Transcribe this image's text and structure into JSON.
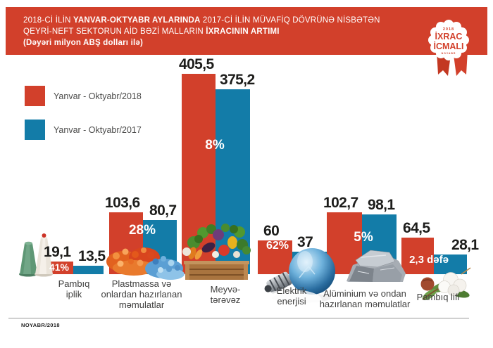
{
  "header": {
    "line1_regular": "2018-Cİ İLİN ",
    "line1_bold": "YANVAR-OKTYABR AYLARINDA",
    "line1_rest": " 2017-Cİ İLİN MÜVAFİQ DÖVRÜNƏ NİSBƏTƏN",
    "line2_regular": "QEYRİ-NEFT SEKTORUN AİD BƏZİ MALLARIN ",
    "line2_bold": "İXRACININ ARTIMI",
    "line3": "(Dəyəri milyon ABŞ dolları ilə)"
  },
  "badge": {
    "year": "2018",
    "line1": "İXRAC",
    "line2": "İCMALI",
    "sub": "NOYABR"
  },
  "footer": {
    "date": "NOYABR/2018"
  },
  "colors": {
    "red": "#d2402b",
    "blue": "#137ca8",
    "text_dark": "#1d1d1b"
  },
  "chart_data": {
    "type": "bar",
    "title": "2018-Cİ İLİN YANVAR-OKTYABR AYLARINDA 2017-Cİ İLİN MÜVAFİQ DÖVRÜNƏ NİSBƏTƏN QEYRİ-NEFT SEKTORUN AİD BƏZİ MALLARIN İXRACININ ARTIMI",
    "subtitle": "(Dəyəri milyon ABŞ dolları ilə)",
    "unit": "milyon ABŞ dolları",
    "legend_position": "top-left",
    "grid": false,
    "categories": [
      "Pambıq iplik",
      "Plastmassa və onlardan hazırlanan məmulatlar",
      "Meyvə-tərəvəz",
      "Elektrik enerjisi",
      "Alüminium və ondan hazırlanan məmulatlar",
      "Pambıq lifi"
    ],
    "category_lines": [
      [
        "Pambıq",
        "iplik"
      ],
      [
        "Plastmassa və",
        "onlardan hazırlanan",
        "məmulatlar"
      ],
      [
        "Meyvə-",
        "tərəvəz"
      ],
      [
        "Elektrik",
        "enerjisi"
      ],
      [
        "Alüminium və ondan",
        "hazırlanan məmulatlar"
      ],
      [
        "Pambıq lifi"
      ]
    ],
    "series": [
      {
        "name": "Yanvar - Oktyabr/2018",
        "color": "#d2402b",
        "values": [
          19.1,
          103.6,
          405.5,
          60,
          102.7,
          64.5
        ]
      },
      {
        "name": "Yanvar - Oktyabr/2017",
        "color": "#137ca8",
        "values": [
          13.5,
          80.7,
          375.2,
          37,
          98.1,
          28.1
        ]
      }
    ],
    "value_labels": [
      [
        "19,1",
        "103,6",
        "405,5",
        "60",
        "102,7",
        "64,5"
      ],
      [
        "13,5",
        "80,7",
        "375,2",
        "37",
        "98,1",
        "28,1"
      ]
    ],
    "growth_labels": [
      "41%",
      "28%",
      "8%",
      "62%",
      "5%",
      "2,3 dəfə"
    ]
  }
}
